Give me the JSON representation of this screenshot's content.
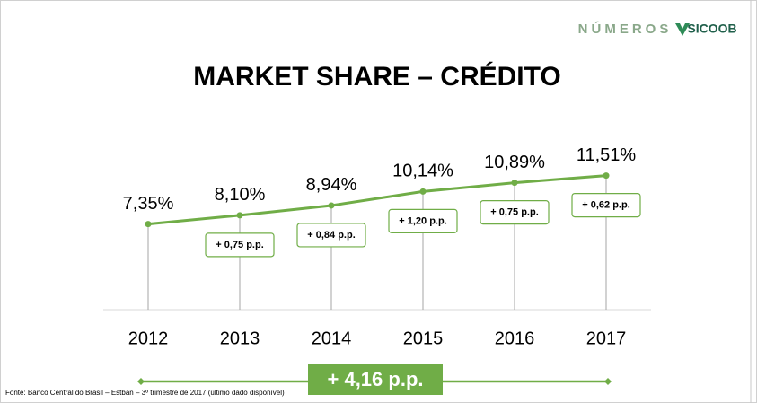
{
  "chart_data": {
    "type": "line",
    "title": "MARKET SHARE – CRÉDITO",
    "categories": [
      "2012",
      "2013",
      "2014",
      "2015",
      "2016",
      "2017"
    ],
    "values": [
      7.35,
      8.1,
      8.94,
      10.14,
      10.89,
      11.51
    ],
    "value_labels": [
      "7,35%",
      "8,10%",
      "8,94%",
      "10,14%",
      "10,89%",
      "11,51%"
    ],
    "change_labels": [
      null,
      "+ 0,75 p.p.",
      "+ 0,84 p.p.",
      "+ 1,20 p.p.",
      "+ 0,75 p.p.",
      "+ 0,62 p.p."
    ],
    "total_change": "+ 4,16 p.p.",
    "color": "#70ad47",
    "ylim": [
      0,
      14
    ],
    "source": "Fonte: Banco Central do Brasil – Estban – 3º trimestre de 2017 (último dado disponível)"
  },
  "logo": {
    "text": "NÚMEROS",
    "brand": "SICOOB"
  }
}
